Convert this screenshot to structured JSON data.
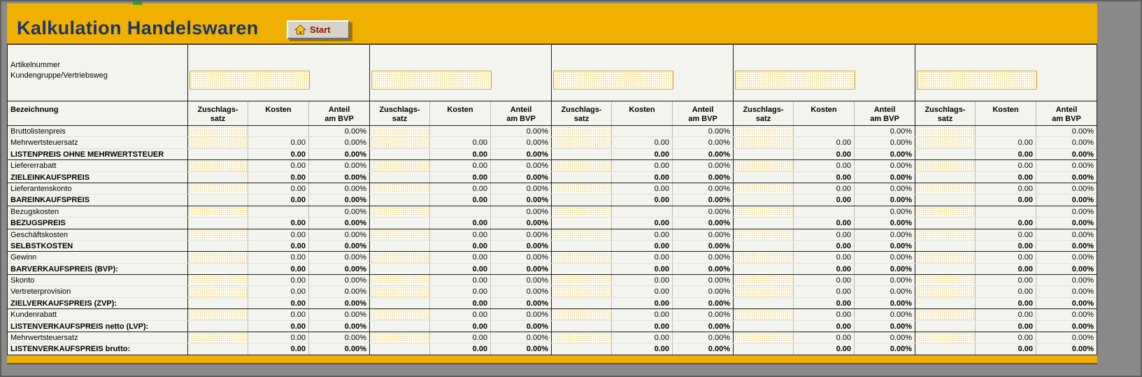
{
  "header": {
    "title": "Kalkulation Handelswaren",
    "start_button_label": "Start"
  },
  "info": {
    "labels": [
      "Artikelnummer",
      "Kundengruppe/Vertriebsweg"
    ],
    "input_value": ""
  },
  "colors": {
    "accent_gold": "#EFB000",
    "title_navy": "#1B3668",
    "button_face": "#D6D2C9",
    "start_text_red": "#8B1500",
    "sheet_bg": "#F4F4EF",
    "input_fill": "#FFFBEA",
    "input_dot": "#D8B44A",
    "window_gray": "#8A8A8A",
    "green_accent": "#2E9E3E"
  },
  "table": {
    "label_header": "Bezeichnung",
    "group_count": 5,
    "col_headers": [
      {
        "line1": "Zuschlags-",
        "line2": "satz"
      },
      {
        "line1": "Kosten",
        "line2": ""
      },
      {
        "line1": "Anteil",
        "line2": "am BVP"
      }
    ],
    "rows": [
      {
        "label": "Bruttolistenpreis",
        "bold": false,
        "section": true,
        "zuschlag": "input",
        "kosten": "",
        "anteil": "0.00%"
      },
      {
        "label": "Mehrwertsteuersatz",
        "bold": false,
        "section": false,
        "zuschlag": "input",
        "kosten": "0.00",
        "anteil": "0.00%"
      },
      {
        "label": "LISTENPREIS OHNE MEHRWERTSTEUER",
        "bold": true,
        "section": false,
        "zuschlag": "",
        "kosten": "0.00",
        "anteil": "0.00%"
      },
      {
        "label": "Liefererrabatt",
        "bold": false,
        "section": true,
        "zuschlag": "input",
        "kosten": "0.00",
        "anteil": "0.00%"
      },
      {
        "label": "ZIELEINKAUFSPREIS",
        "bold": true,
        "section": false,
        "zuschlag": "",
        "kosten": "0.00",
        "anteil": "0.00%"
      },
      {
        "label": "Lieferantenskonto",
        "bold": false,
        "section": true,
        "zuschlag": "input",
        "kosten": "0.00",
        "anteil": "0.00%"
      },
      {
        "label": "BAREINKAUFSPREIS",
        "bold": true,
        "section": false,
        "zuschlag": "",
        "kosten": "0.00",
        "anteil": "0.00%"
      },
      {
        "label": "Bezugskosten",
        "bold": false,
        "section": true,
        "zuschlag": "input",
        "kosten": "",
        "anteil": "0.00%"
      },
      {
        "label": "BEZUGSPREIS",
        "bold": true,
        "section": false,
        "zuschlag": "",
        "kosten": "0.00",
        "anteil": "0.00%"
      },
      {
        "label": "Geschäftskosten",
        "bold": false,
        "section": true,
        "zuschlag": "input",
        "kosten": "0.00",
        "anteil": "0.00%"
      },
      {
        "label": "SELBSTKOSTEN",
        "bold": true,
        "section": false,
        "zuschlag": "",
        "kosten": "0.00",
        "anteil": "0.00%"
      },
      {
        "label": "Gewinn",
        "bold": false,
        "section": true,
        "zuschlag": "input",
        "kosten": "0.00",
        "anteil": "0.00%"
      },
      {
        "label": "BARVERKAUFSPREIS (BVP):",
        "bold": true,
        "section": false,
        "zuschlag": "",
        "kosten": "0.00",
        "anteil": "0.00%"
      },
      {
        "label": "Skonto",
        "bold": false,
        "section": true,
        "zuschlag": "input",
        "kosten": "0.00",
        "anteil": "0.00%"
      },
      {
        "label": "Vertreterprovision",
        "bold": false,
        "section": false,
        "zuschlag": "input",
        "kosten": "0.00",
        "anteil": "0.00%"
      },
      {
        "label": "ZIELVERKAUFSPREIS (ZVP):",
        "bold": true,
        "section": false,
        "zuschlag": "",
        "kosten": "0.00",
        "anteil": "0.00%"
      },
      {
        "label": "Kundenrabatt",
        "bold": false,
        "section": true,
        "zuschlag": "input",
        "kosten": "0.00",
        "anteil": "0.00%"
      },
      {
        "label": "LISTENVERKAUFSPREIS netto (LVP):",
        "bold": true,
        "section": false,
        "zuschlag": "",
        "kosten": "0.00",
        "anteil": "0.00%"
      },
      {
        "label": "Mehrwertsteuersatz",
        "bold": false,
        "section": true,
        "zuschlag": "input",
        "kosten": "0.00",
        "anteil": "0.00%"
      },
      {
        "label": "LISTENVERKAUFSPREIS brutto:",
        "bold": true,
        "section": false,
        "zuschlag": "",
        "kosten": "0.00",
        "anteil": "0.00%"
      }
    ]
  }
}
